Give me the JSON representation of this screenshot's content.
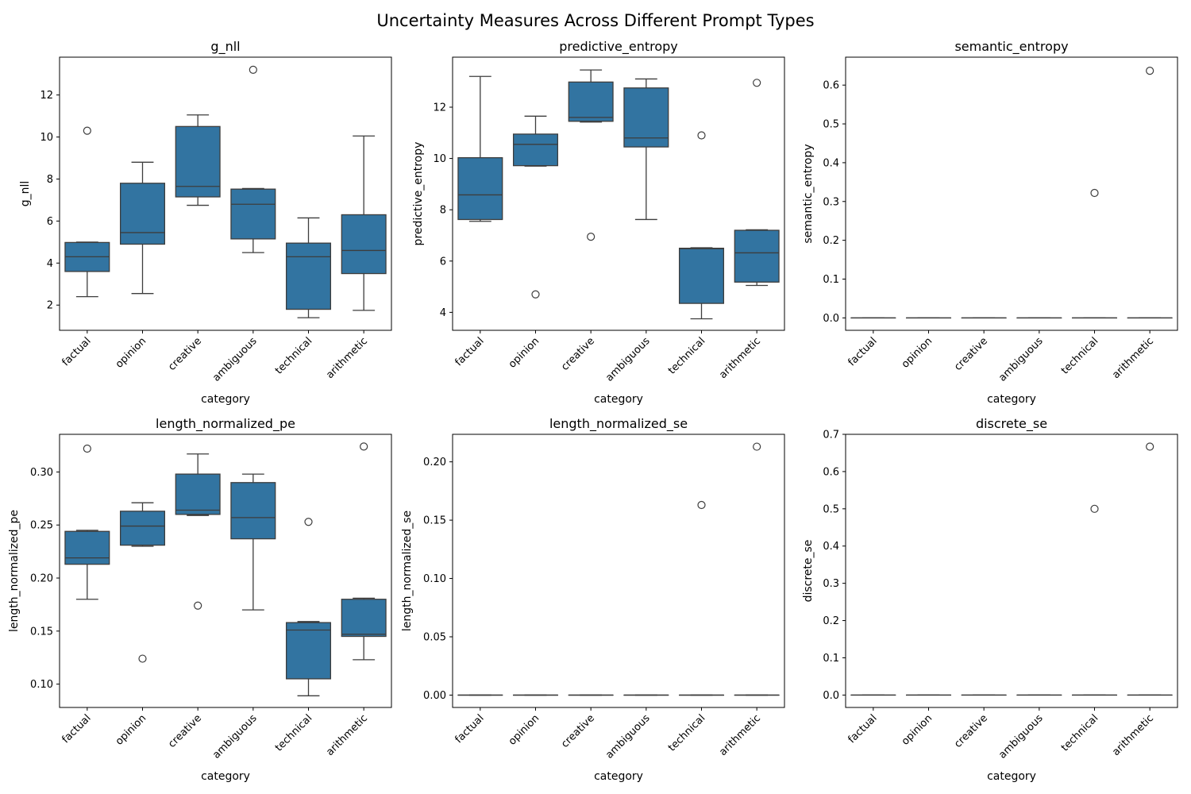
{
  "figure": {
    "suptitle": "Uncertainty Measures Across Different Prompt Types",
    "box_color": "#3274a1",
    "line_color": "#3d3d3d"
  },
  "chart_data": [
    {
      "type": "box",
      "title": "g_nll",
      "xlabel": "category",
      "ylabel": "g_nll",
      "categories": [
        "factual",
        "opinion",
        "creative",
        "ambiguous",
        "technical",
        "arithmetic"
      ],
      "ylim": [
        0.8,
        13.8
      ],
      "yticks": [
        2,
        4,
        6,
        8,
        10,
        12
      ],
      "ytick_labels": [
        "2",
        "4",
        "6",
        "8",
        "10",
        "12"
      ],
      "boxes": [
        {
          "whislo": 2.4,
          "q1": 3.6,
          "med": 4.3,
          "q3": 4.98,
          "whishi": 5.0,
          "fliers": [
            10.3
          ]
        },
        {
          "whislo": 2.55,
          "q1": 4.9,
          "med": 5.45,
          "q3": 7.8,
          "whishi": 8.8,
          "fliers": []
        },
        {
          "whislo": 6.75,
          "q1": 7.15,
          "med": 7.65,
          "q3": 10.5,
          "whishi": 11.05,
          "fliers": []
        },
        {
          "whislo": 4.5,
          "q1": 5.15,
          "med": 6.8,
          "q3": 7.52,
          "whishi": 7.55,
          "fliers": [
            13.2
          ]
        },
        {
          "whislo": 1.4,
          "q1": 1.8,
          "med": 4.3,
          "q3": 4.95,
          "whishi": 6.15,
          "fliers": []
        },
        {
          "whislo": 1.75,
          "q1": 3.5,
          "med": 4.6,
          "q3": 6.3,
          "whishi": 10.05,
          "fliers": []
        }
      ]
    },
    {
      "type": "box",
      "title": "predictive_entropy",
      "xlabel": "category",
      "ylabel": "predictive_entropy",
      "categories": [
        "factual",
        "opinion",
        "creative",
        "ambiguous",
        "technical",
        "arithmetic"
      ],
      "ylim": [
        3.3,
        13.95
      ],
      "yticks": [
        4,
        6,
        8,
        10,
        12
      ],
      "ytick_labels": [
        "4",
        "6",
        "8",
        "10",
        "12"
      ],
      "boxes": [
        {
          "whislo": 7.55,
          "q1": 7.62,
          "med": 8.58,
          "q3": 10.03,
          "whishi": 13.2,
          "fliers": []
        },
        {
          "whislo": 9.7,
          "q1": 9.72,
          "med": 10.55,
          "q3": 10.95,
          "whishi": 11.65,
          "fliers": [
            4.7
          ]
        },
        {
          "whislo": 11.42,
          "q1": 11.45,
          "med": 11.6,
          "q3": 12.98,
          "whishi": 13.45,
          "fliers": [
            6.95
          ]
        },
        {
          "whislo": 7.62,
          "q1": 10.45,
          "med": 10.8,
          "q3": 12.75,
          "whishi": 13.1,
          "fliers": []
        },
        {
          "whislo": 3.75,
          "q1": 4.35,
          "med": 6.48,
          "q3": 6.5,
          "whishi": 6.52,
          "fliers": [
            10.9
          ]
        },
        {
          "whislo": 5.05,
          "q1": 5.18,
          "med": 6.32,
          "q3": 7.2,
          "whishi": 7.22,
          "fliers": [
            12.95
          ]
        }
      ]
    },
    {
      "type": "box",
      "title": "semantic_entropy",
      "xlabel": "category",
      "ylabel": "semantic_entropy",
      "categories": [
        "factual",
        "opinion",
        "creative",
        "ambiguous",
        "technical",
        "arithmetic"
      ],
      "ylim": [
        -0.032,
        0.672
      ],
      "yticks": [
        0,
        0.1,
        0.2,
        0.3,
        0.4,
        0.5,
        0.6
      ],
      "ytick_labels": [
        "0.0",
        "0.1",
        "0.2",
        "0.3",
        "0.4",
        "0.5",
        "0.6"
      ],
      "boxes": [
        {
          "whislo": 0,
          "q1": 0,
          "med": 0,
          "q3": 0,
          "whishi": 0,
          "fliers": []
        },
        {
          "whislo": 0,
          "q1": 0,
          "med": 0,
          "q3": 0,
          "whishi": 0,
          "fliers": []
        },
        {
          "whislo": 0,
          "q1": 0,
          "med": 0,
          "q3": 0,
          "whishi": 0,
          "fliers": []
        },
        {
          "whislo": 0,
          "q1": 0,
          "med": 0,
          "q3": 0,
          "whishi": 0,
          "fliers": []
        },
        {
          "whislo": 0,
          "q1": 0,
          "med": 0,
          "q3": 0,
          "whishi": 0,
          "fliers": [
            0.322
          ]
        },
        {
          "whislo": 0,
          "q1": 0,
          "med": 0,
          "q3": 0,
          "whishi": 0,
          "fliers": [
            0.637
          ]
        }
      ]
    },
    {
      "type": "box",
      "title": "length_normalized_pe",
      "xlabel": "category",
      "ylabel": "length_normalized_pe",
      "categories": [
        "factual",
        "opinion",
        "creative",
        "ambiguous",
        "technical",
        "arithmetic"
      ],
      "ylim": [
        0.078,
        0.3355
      ],
      "yticks": [
        0.1,
        0.15,
        0.2,
        0.25,
        0.3
      ],
      "ytick_labels": [
        "0.10",
        "0.15",
        "0.20",
        "0.25",
        "0.30"
      ],
      "boxes": [
        {
          "whislo": 0.18,
          "q1": 0.213,
          "med": 0.219,
          "q3": 0.244,
          "whishi": 0.245,
          "fliers": [
            0.322
          ]
        },
        {
          "whislo": 0.23,
          "q1": 0.231,
          "med": 0.249,
          "q3": 0.263,
          "whishi": 0.271,
          "fliers": [
            0.124
          ]
        },
        {
          "whislo": 0.259,
          "q1": 0.26,
          "med": 0.264,
          "q3": 0.298,
          "whishi": 0.317,
          "fliers": [
            0.174
          ]
        },
        {
          "whislo": 0.17,
          "q1": 0.237,
          "med": 0.257,
          "q3": 0.29,
          "whishi": 0.298,
          "fliers": []
        },
        {
          "whislo": 0.089,
          "q1": 0.105,
          "med": 0.151,
          "q3": 0.158,
          "whishi": 0.159,
          "fliers": [
            0.253
          ]
        },
        {
          "whislo": 0.123,
          "q1": 0.145,
          "med": 0.147,
          "q3": 0.18,
          "whishi": 0.181,
          "fliers": [
            0.324
          ]
        }
      ]
    },
    {
      "type": "box",
      "title": "length_normalized_se",
      "xlabel": "category",
      "ylabel": "length_normalized_se",
      "categories": [
        "factual",
        "opinion",
        "creative",
        "ambiguous",
        "technical",
        "arithmetic"
      ],
      "ylim": [
        -0.0106,
        0.2236
      ],
      "yticks": [
        0,
        0.05,
        0.1,
        0.15,
        0.2
      ],
      "ytick_labels": [
        "0.00",
        "0.05",
        "0.10",
        "0.15",
        "0.20"
      ],
      "boxes": [
        {
          "whislo": 0,
          "q1": 0,
          "med": 0,
          "q3": 0,
          "whishi": 0,
          "fliers": []
        },
        {
          "whislo": 0,
          "q1": 0,
          "med": 0,
          "q3": 0,
          "whishi": 0,
          "fliers": []
        },
        {
          "whislo": 0,
          "q1": 0,
          "med": 0,
          "q3": 0,
          "whishi": 0,
          "fliers": []
        },
        {
          "whislo": 0,
          "q1": 0,
          "med": 0,
          "q3": 0,
          "whishi": 0,
          "fliers": []
        },
        {
          "whislo": 0,
          "q1": 0,
          "med": 0,
          "q3": 0,
          "whishi": 0,
          "fliers": [
            0.163
          ]
        },
        {
          "whislo": 0,
          "q1": 0,
          "med": 0,
          "q3": 0,
          "whishi": 0,
          "fliers": [
            0.213
          ]
        }
      ]
    },
    {
      "type": "box",
      "title": "discrete_se",
      "xlabel": "category",
      "ylabel": "discrete_se",
      "categories": [
        "factual",
        "opinion",
        "creative",
        "ambiguous",
        "technical",
        "arithmetic"
      ],
      "ylim": [
        -0.0333,
        0.7
      ],
      "yticks": [
        0,
        0.1,
        0.2,
        0.3,
        0.4,
        0.5,
        0.6,
        0.7
      ],
      "ytick_labels": [
        "0.0",
        "0.1",
        "0.2",
        "0.3",
        "0.4",
        "0.5",
        "0.6",
        "0.7"
      ],
      "boxes": [
        {
          "whislo": 0,
          "q1": 0,
          "med": 0,
          "q3": 0,
          "whishi": 0,
          "fliers": []
        },
        {
          "whislo": 0,
          "q1": 0,
          "med": 0,
          "q3": 0,
          "whishi": 0,
          "fliers": []
        },
        {
          "whislo": 0,
          "q1": 0,
          "med": 0,
          "q3": 0,
          "whishi": 0,
          "fliers": []
        },
        {
          "whislo": 0,
          "q1": 0,
          "med": 0,
          "q3": 0,
          "whishi": 0,
          "fliers": []
        },
        {
          "whislo": 0,
          "q1": 0,
          "med": 0,
          "q3": 0,
          "whishi": 0,
          "fliers": [
            0.5
          ]
        },
        {
          "whislo": 0,
          "q1": 0,
          "med": 0,
          "q3": 0,
          "whishi": 0,
          "fliers": [
            0.667
          ]
        }
      ]
    }
  ]
}
